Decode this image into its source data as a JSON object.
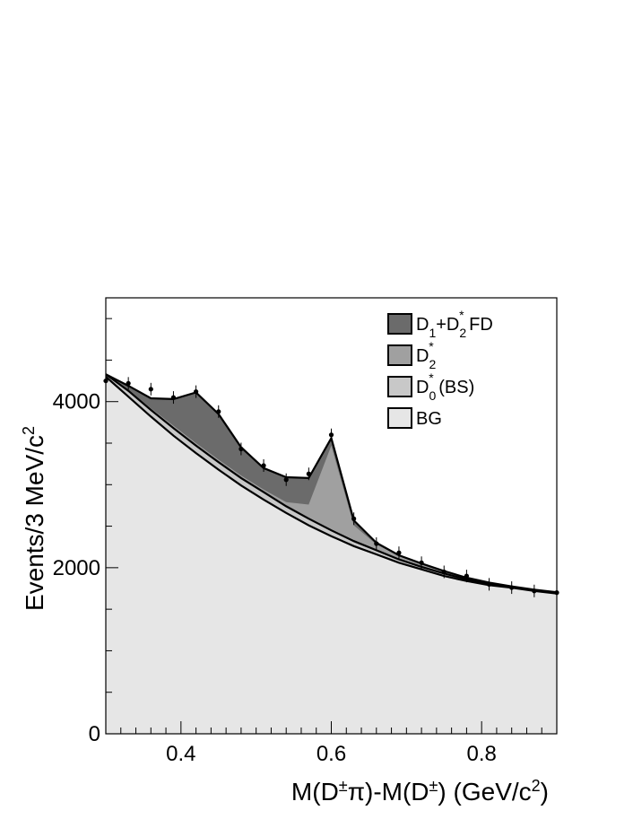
{
  "chart_data": {
    "type": "area",
    "xlabel": "M(D±π)-M(D±) (GeV/c2)",
    "ylabel": "Events/3 MeV/c2",
    "xlim": [
      0.3,
      0.9
    ],
    "ylim": [
      0,
      5250
    ],
    "x_ticks": [
      "0.4",
      "0.6",
      "0.8"
    ],
    "x_tick_values": [
      0.4,
      0.6,
      0.8
    ],
    "y_ticks": [
      "0",
      "2000",
      "4000"
    ],
    "y_tick_values": [
      0,
      2000,
      4000
    ],
    "legend": [
      {
        "label": "D1+D2* FD",
        "color": "#6b6b6b"
      },
      {
        "label": "D2*",
        "color": "#a0a0a0"
      },
      {
        "label": "D0* (BS)",
        "color": "#c8c8c8"
      },
      {
        "label": "BG",
        "color": "#e6e6e6"
      }
    ],
    "legend_position": "top-right",
    "grid": false,
    "x": [
      0.3,
      0.33,
      0.36,
      0.39,
      0.42,
      0.45,
      0.48,
      0.51,
      0.54,
      0.57,
      0.6,
      0.63,
      0.66,
      0.69,
      0.72,
      0.75,
      0.78,
      0.81,
      0.84,
      0.87,
      0.9
    ],
    "series": [
      {
        "name": "BG",
        "values": [
          4300,
          4060,
          3820,
          3590,
          3380,
          3180,
          2990,
          2820,
          2660,
          2510,
          2380,
          2260,
          2160,
          2060,
          1980,
          1900,
          1840,
          1790,
          1760,
          1720,
          1690
        ]
      },
      {
        "name": "D0* (BS)",
        "values": [
          4330,
          4130,
          3900,
          3680,
          3470,
          3270,
          3080,
          2910,
          2740,
          2590,
          2450,
          2320,
          2210,
          2100,
          2010,
          1930,
          1860,
          1810,
          1770,
          1730,
          1700
        ]
      },
      {
        "name": "D2*",
        "values": [
          4330,
          4140,
          3920,
          3710,
          3500,
          3300,
          3110,
          2940,
          2790,
          2760,
          3470,
          2510,
          2280,
          2140,
          2040,
          1960,
          1880,
          1820,
          1775,
          1735,
          1705
        ]
      },
      {
        "name": "D1+D2* FD",
        "values": [
          4330,
          4190,
          4040,
          4030,
          4110,
          3850,
          3450,
          3200,
          3090,
          3080,
          3560,
          2570,
          2300,
          2150,
          2050,
          1960,
          1880,
          1820,
          1775,
          1735,
          1705
        ]
      },
      {
        "name": "Data",
        "values": [
          4250,
          4220,
          4150,
          4050,
          4120,
          3880,
          3430,
          3230,
          3060,
          3130,
          3600,
          2590,
          2290,
          2180,
          2060,
          1950,
          1900,
          1800,
          1760,
          1720,
          1700
        ]
      }
    ]
  }
}
